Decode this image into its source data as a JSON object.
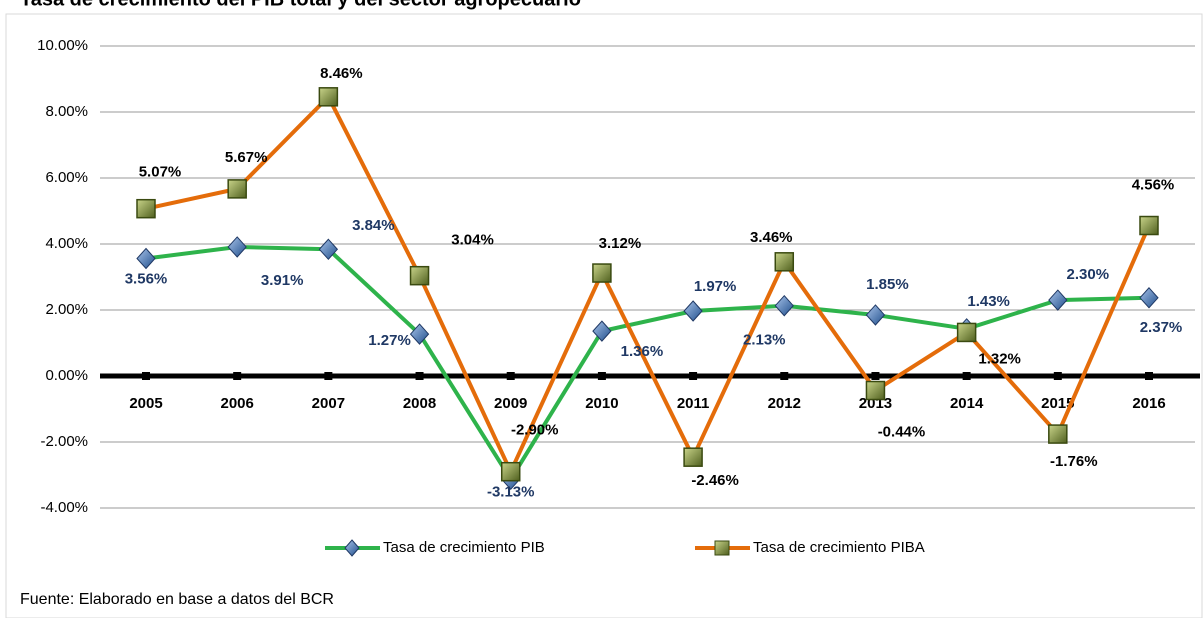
{
  "chart_data": {
    "type": "line",
    "title": "Tasa de crecimiento del PIB total y del sector agropecuario",
    "source": "Fuente: Elaborado en base a datos del BCR",
    "categories": [
      "2005",
      "2006",
      "2007",
      "2008",
      "2009",
      "2010",
      "2011",
      "2012",
      "2013",
      "2014",
      "2015",
      "2016"
    ],
    "series": [
      {
        "name": "Tasa de crecimiento PIB",
        "color": "#2eb34b",
        "marker": "diamond",
        "label_color": "#1f3864",
        "values": [
          3.56,
          3.91,
          3.84,
          1.27,
          -3.13,
          1.36,
          1.97,
          2.13,
          1.85,
          1.43,
          2.3,
          2.37
        ],
        "value_labels": [
          "3.56%",
          "3.91%",
          "3.84%",
          "1.27%",
          "-3.13%",
          "1.36%",
          "1.97%",
          "2.13%",
          "1.85%",
          "1.43%",
          "2.30%",
          "2.37%"
        ]
      },
      {
        "name": "Tasa de crecimiento PIBA",
        "color": "#e46c0a",
        "marker": "square",
        "label_color": "#000000",
        "values": [
          5.07,
          5.67,
          8.46,
          3.04,
          -2.9,
          3.12,
          -2.46,
          3.46,
          -0.44,
          1.32,
          -1.76,
          4.56
        ],
        "value_labels": [
          "5.07%",
          "5.67%",
          "8.46%",
          "3.04%",
          "-2.90%",
          "3.12%",
          "-2.46%",
          "3.46%",
          "-0.44%",
          "1.32%",
          "-1.76%",
          "4.56%"
        ]
      }
    ],
    "ylim": [
      -4,
      10
    ],
    "yticks": [
      {
        "value": -4,
        "label": "-4.00%"
      },
      {
        "value": -2,
        "label": "-2.00%"
      },
      {
        "value": 0,
        "label": "0.00%"
      },
      {
        "value": 2,
        "label": "2.00%"
      },
      {
        "value": 4,
        "label": "4.00%"
      },
      {
        "value": 6,
        "label": "6.00%"
      },
      {
        "value": 8,
        "label": "8.00%"
      },
      {
        "value": 10,
        "label": "10.00%"
      }
    ],
    "grid": true,
    "legend": "bottom"
  }
}
